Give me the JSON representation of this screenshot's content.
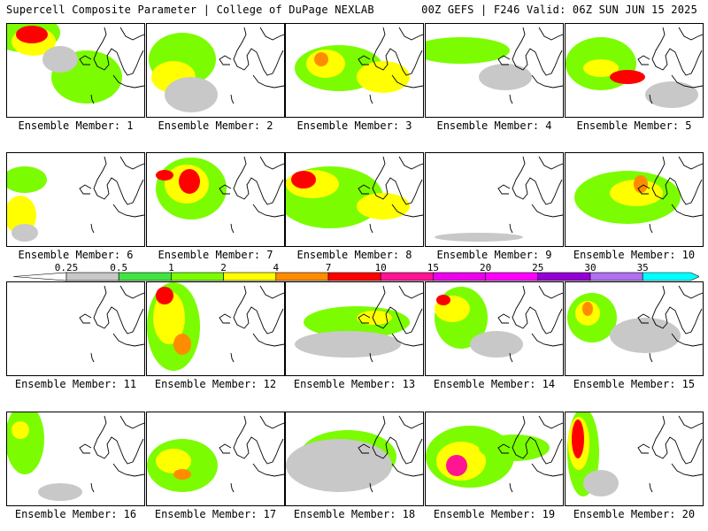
{
  "header": {
    "title": "Supercell Composite Parameter | College of DuPage NEXLAB",
    "run_info": "00Z GEFS | F246 Valid: 06Z SUN JUN 15 2025"
  },
  "colorbar": {
    "thresholds": [
      "0.25",
      "0.5",
      "1",
      "2",
      "4",
      "7",
      "10",
      "15",
      "20",
      "25",
      "30",
      "35"
    ],
    "colors": [
      "#c8c8c8",
      "#41e441",
      "#7cfc00",
      "#ffff00",
      "#ff8c00",
      "#ff0000",
      "#ff1493",
      "#ee00ee",
      "#ff00ff",
      "#9400d3",
      "#b070f0",
      "#00ffff"
    ],
    "empty_color": "#ffffff"
  },
  "panels": [
    {
      "label": "Ensemble Member: 1"
    },
    {
      "label": "Ensemble Member: 2"
    },
    {
      "label": "Ensemble Member: 3"
    },
    {
      "label": "Ensemble Member: 4"
    },
    {
      "label": "Ensemble Member: 5"
    },
    {
      "label": "Ensemble Member: 6"
    },
    {
      "label": "Ensemble Member: 7"
    },
    {
      "label": "Ensemble Member: 8"
    },
    {
      "label": "Ensemble Member: 9"
    },
    {
      "label": "Ensemble Member: 10"
    },
    {
      "label": "Ensemble Member: 11"
    },
    {
      "label": "Ensemble Member: 12"
    },
    {
      "label": "Ensemble Member: 13"
    },
    {
      "label": "Ensemble Member: 14"
    },
    {
      "label": "Ensemble Member: 15"
    },
    {
      "label": "Ensemble Member: 16"
    },
    {
      "label": "Ensemble Member: 17"
    },
    {
      "label": "Ensemble Member: 18"
    },
    {
      "label": "Ensemble Member: 19"
    },
    {
      "label": "Ensemble Member: 20"
    }
  ]
}
